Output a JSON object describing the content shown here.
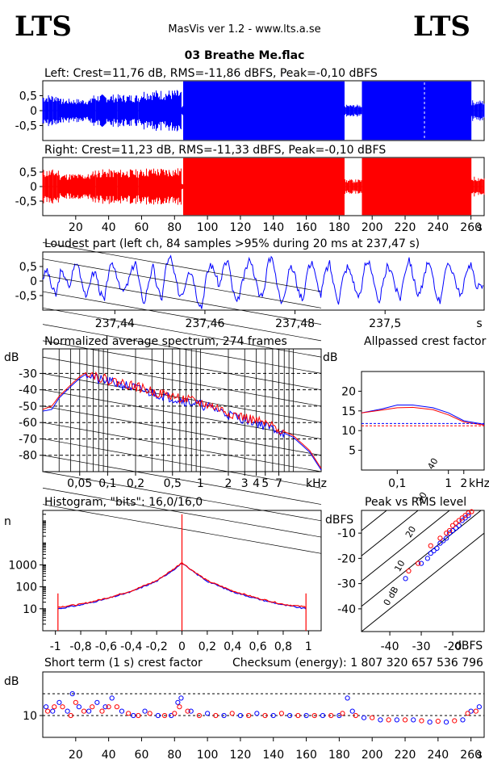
{
  "header": {
    "logo_left": "LTS",
    "logo_right": "LTS",
    "app_title": "MasVis ver 1.2 - www.lts.a.se",
    "track_title": "03 Breathe Me.flac"
  },
  "colors": {
    "left": "#0000ff",
    "right": "#ff0000",
    "frame": "#000000"
  },
  "chart_data": [
    {
      "id": "waveform-left",
      "type": "area",
      "title": "Left: Crest=11,76 dB, RMS=-11,86 dBFS, Peak=-0,10 dBFS",
      "ytick_labels": [
        "0,5",
        "0",
        "-0,5"
      ],
      "yticks": [
        0.5,
        0,
        -0.5
      ],
      "ylim": [
        -1,
        1
      ],
      "xlim": [
        0,
        268
      ],
      "series": [
        {
          "color": "#0000ff",
          "segments": [
            {
              "x0": 0,
              "x1": 10,
              "amp": 0.55
            },
            {
              "x0": 10,
              "x1": 30,
              "amp": 0.4
            },
            {
              "x0": 30,
              "x1": 60,
              "amp": 0.55
            },
            {
              "x0": 60,
              "x1": 84,
              "amp": 0.7
            },
            {
              "x0": 84,
              "x1": 85.5,
              "amp": 0.15
            },
            {
              "x0": 85.5,
              "x1": 183,
              "amp": 1.0
            },
            {
              "x0": 183,
              "x1": 194,
              "amp": 0.2
            },
            {
              "x0": 194,
              "x1": 260,
              "amp": 1.0
            },
            {
              "x0": 260,
              "x1": 268,
              "amp": 0.35
            }
          ]
        }
      ]
    },
    {
      "id": "waveform-right",
      "type": "area",
      "title": "Right: Crest=11,23 dB, RMS=-11,33 dBFS, Peak=-0,10 dBFS",
      "ytick_labels": [
        "0,5",
        "0",
        "-0,5"
      ],
      "yticks": [
        0.5,
        0,
        -0.5
      ],
      "ylim": [
        -1,
        1
      ],
      "xlim": [
        0,
        268
      ],
      "xtick_labels": [
        "20",
        "40",
        "60",
        "80",
        "100",
        "120",
        "140",
        "160",
        "180",
        "200",
        "220",
        "240",
        "260",
        "s"
      ],
      "xticks": [
        20,
        40,
        60,
        80,
        100,
        120,
        140,
        160,
        180,
        200,
        220,
        240,
        260
      ],
      "series": [
        {
          "color": "#ff0000",
          "segments": [
            {
              "x0": 0,
              "x1": 10,
              "amp": 0.6
            },
            {
              "x0": 10,
              "x1": 30,
              "amp": 0.45
            },
            {
              "x0": 30,
              "x1": 60,
              "amp": 0.6
            },
            {
              "x0": 60,
              "x1": 84,
              "amp": 0.65
            },
            {
              "x0": 84,
              "x1": 85.5,
              "amp": 0.15
            },
            {
              "x0": 85.5,
              "x1": 183,
              "amp": 1.0
            },
            {
              "x0": 183,
              "x1": 194,
              "amp": 0.25
            },
            {
              "x0": 194,
              "x1": 260,
              "amp": 1.0
            },
            {
              "x0": 260,
              "x1": 268,
              "amp": 0.35
            }
          ]
        }
      ]
    },
    {
      "id": "loudest-part",
      "type": "line",
      "title": "Loudest part (left  ch, 84 samples >95% during 20 ms at 237,47 s)",
      "ytick_labels": [
        "0,5",
        "0",
        "-0,5"
      ],
      "yticks": [
        0.5,
        0,
        -0.5
      ],
      "ylim": [
        -1,
        1
      ],
      "xlim": [
        237.424,
        237.522
      ],
      "xtick_labels": [
        "237,44",
        "237,46",
        "237,48",
        "237,5",
        "s"
      ],
      "xticks": [
        237.44,
        237.46,
        237.48,
        237.5
      ],
      "series": [
        {
          "color": "#0000ff",
          "y": [
            0.1,
            0.4,
            -0.2,
            -0.5,
            0.3,
            0.2,
            -0.3,
            0.5,
            0.6,
            -0.1,
            -0.6,
            0.2,
            0.3,
            -0.4,
            -0.7,
            0.4,
            0.55,
            0.1,
            -0.4,
            -0.2,
            0.3,
            0.7,
            -0.2,
            -0.8,
            0.0,
            0.5,
            -0.3,
            -0.6,
            0.6,
            0.8,
            0.1,
            -0.5,
            -0.3,
            0.4,
            0.2,
            -0.6,
            -0.9,
            0.1,
            0.6,
            0.3,
            -0.2,
            0.5,
            0.7,
            -0.3,
            -0.8,
            -0.2,
            0.4,
            0.8,
            0.2,
            -0.5,
            -0.4,
            0.6,
            0.9,
            -0.1,
            -0.7,
            -0.3,
            0.5,
            0.3,
            -0.4,
            -0.6,
            0.4,
            0.7,
            0.0,
            -0.5,
            0.3,
            0.6,
            -0.2,
            -0.7,
            0.1,
            0.5,
            0.2,
            -0.4,
            -0.5,
            0.6,
            0.7,
            -0.1,
            -0.8,
            -0.2,
            0.5,
            0.4,
            -0.3,
            -0.6,
            0.3,
            0.8,
            0.1,
            -0.5,
            -0.2,
            0.6,
            0.4,
            -0.4,
            -0.7,
            0.2,
            0.6,
            0.3,
            -0.3,
            -0.5,
            0.4,
            0.6,
            -0.1,
            -0.2
          ]
        }
      ]
    },
    {
      "id": "average-spectrum",
      "type": "line",
      "title": "Normalized average spectrum, 274 frames",
      "ylabel": "dB",
      "ytick_labels": [
        "-30",
        "-40",
        "-50",
        "-60",
        "-70",
        "-80"
      ],
      "yticks": [
        -30,
        -40,
        -50,
        -60,
        -70,
        -80
      ],
      "ylim": [
        -90,
        -15
      ],
      "xlim": [
        0.02,
        20
      ],
      "xscale": "log",
      "xtick_labels": [
        "0,05",
        "0,1",
        "0,2",
        "0,5",
        "1",
        "2",
        "3",
        "4",
        "5",
        "7",
        "kHz"
      ],
      "xticks": [
        0.05,
        0.1,
        0.2,
        0.5,
        1,
        2,
        3,
        4,
        5,
        7
      ],
      "series": [
        {
          "color": "#0000ff",
          "x": [
            0.02,
            0.025,
            0.03,
            0.04,
            0.05,
            0.06,
            0.08,
            0.1,
            0.15,
            0.2,
            0.3,
            0.5,
            0.7,
            1,
            1.5,
            2,
            3,
            4,
            5,
            7,
            10,
            15,
            20
          ],
          "y": [
            -53,
            -52,
            -45,
            -38,
            -33,
            -30,
            -34,
            -35,
            -37,
            -39,
            -42,
            -45,
            -47,
            -49,
            -52,
            -55,
            -58,
            -60,
            -62,
            -65,
            -69,
            -78,
            -89
          ]
        },
        {
          "color": "#ff0000",
          "x": [
            0.02,
            0.025,
            0.03,
            0.04,
            0.05,
            0.06,
            0.08,
            0.1,
            0.15,
            0.2,
            0.3,
            0.5,
            0.7,
            1,
            1.5,
            2,
            3,
            4,
            5,
            7,
            10,
            15,
            20
          ],
          "y": [
            -52,
            -50,
            -44,
            -37,
            -32,
            -29,
            -32,
            -34,
            -36,
            -38,
            -41,
            -44,
            -46,
            -48,
            -51,
            -54,
            -57,
            -59,
            -61,
            -64,
            -68,
            -77,
            -88
          ]
        }
      ]
    },
    {
      "id": "allpassed-crest",
      "type": "line",
      "title": "Allpassed crest factor",
      "ylabel": "dB",
      "ytick_labels": [
        "20",
        "15",
        "10",
        "5"
      ],
      "yticks": [
        20,
        15,
        10,
        5
      ],
      "ylim": [
        0,
        25
      ],
      "xlim": [
        0.02,
        5
      ],
      "xscale": "log",
      "xtick_labels": [
        "0,1",
        "1",
        "2",
        "kHz"
      ],
      "xticks": [
        0.1,
        1,
        2
      ],
      "series": [
        {
          "color": "#0000ff",
          "x": [
            0.02,
            0.05,
            0.1,
            0.2,
            0.5,
            1,
            2,
            5
          ],
          "y": [
            14.5,
            15.5,
            16.5,
            16.5,
            15.8,
            14.5,
            12.5,
            11.6
          ]
        },
        {
          "color": "#ff0000",
          "x": [
            0.02,
            0.05,
            0.1,
            0.2,
            0.5,
            1,
            2,
            5
          ],
          "y": [
            14.5,
            15.2,
            15.8,
            15.9,
            15.3,
            14,
            12.2,
            11.4
          ]
        },
        {
          "color": "#0000ff",
          "style": "dashed",
          "x": [
            0.02,
            5
          ],
          "y": [
            11.8,
            11.8
          ]
        },
        {
          "color": "#ff0000",
          "style": "dashed",
          "x": [
            0.02,
            5
          ],
          "y": [
            11.2,
            11.2
          ]
        }
      ]
    },
    {
      "id": "histogram",
      "type": "line",
      "title": "Histogram, \"bits\": 16,0/16,0",
      "ylabel": "n",
      "ytick_labels": [
        "1000",
        "100",
        "10"
      ],
      "yticks": [
        1000,
        100,
        10
      ],
      "yscale": "log",
      "ylim": [
        1,
        300000
      ],
      "xlim": [
        -1.1,
        1.1
      ],
      "xtick_labels": [
        "-1",
        "-0,8",
        "-0,6",
        "-0,4",
        "-0,2",
        "0",
        "0,2",
        "0,4",
        "0,6",
        "0,8",
        "1"
      ],
      "xticks": [
        -1,
        -0.8,
        -0.6,
        -0.4,
        -0.2,
        0,
        0.2,
        0.4,
        0.6,
        0.8,
        1
      ],
      "series": [
        {
          "color": "#0000ff",
          "x": [
            -0.98,
            -0.8,
            -0.6,
            -0.4,
            -0.2,
            -0.05,
            0,
            0.05,
            0.2,
            0.4,
            0.6,
            0.8,
            0.98
          ],
          "y": [
            10,
            15,
            28,
            60,
            180,
            700,
            1200,
            700,
            180,
            60,
            28,
            15,
            10
          ]
        },
        {
          "color": "#ff0000",
          "x": [
            -0.98,
            -0.8,
            -0.6,
            -0.4,
            -0.2,
            -0.05,
            0,
            0.05,
            0.2,
            0.4,
            0.6,
            0.8,
            0.98
          ],
          "y": [
            12,
            16,
            30,
            65,
            190,
            750,
            1300,
            750,
            190,
            65,
            30,
            16,
            12
          ]
        }
      ],
      "spikes": [
        {
          "color": "#ff0000",
          "x": -0.98,
          "y": 50
        },
        {
          "color": "#ff0000",
          "x": 0,
          "y": 200000
        },
        {
          "color": "#ff0000",
          "x": 0.98,
          "y": 50
        }
      ]
    },
    {
      "id": "peak-vs-rms",
      "type": "scatter",
      "title": "Peak vs RMS level",
      "ylabel": "dBFS",
      "xlabel": "dBFS",
      "ytick_labels": [
        "-10",
        "-20",
        "-30",
        "-40"
      ],
      "yticks": [
        -10,
        -20,
        -30,
        -40
      ],
      "ylim": [
        -49,
        -1
      ],
      "xtick_labels": [
        "-40",
        "-30",
        "-20"
      ],
      "xticks": [
        -40,
        -30,
        -20
      ],
      "xlim": [
        -49,
        -10
      ],
      "diagonal_labels": [
        "40",
        "30",
        "20",
        "10",
        "0 dB"
      ],
      "diagonal_offsets": [
        40,
        30,
        20,
        10,
        0
      ],
      "series": [
        {
          "color": "#0000ff",
          "x": [
            -35,
            -30,
            -28,
            -27,
            -26,
            -25,
            -24,
            -23,
            -22,
            -21,
            -20,
            -19,
            -18,
            -17,
            -16,
            -15
          ],
          "y": [
            -28,
            -22,
            -20,
            -18,
            -17,
            -16,
            -14,
            -13,
            -12,
            -10,
            -9,
            -8,
            -7,
            -5,
            -4,
            -3
          ]
        },
        {
          "color": "#ff0000",
          "x": [
            -34,
            -31,
            -27,
            -24,
            -22,
            -21,
            -20,
            -19,
            -18,
            -17,
            -16,
            -15,
            -14
          ],
          "y": [
            -25,
            -22,
            -15,
            -12,
            -10,
            -9,
            -7,
            -6,
            -5,
            -4,
            -3,
            -2,
            -1.5
          ]
        }
      ]
    },
    {
      "id": "short-term-crest",
      "type": "scatter",
      "title": "Short term (1 s) crest factor",
      "checksum": "Checksum (energy):  1 807 320 657 536 796",
      "ylabel": "dB",
      "ytick_labels": [
        "10"
      ],
      "yticks": [
        10
      ],
      "ylim": [
        5,
        20
      ],
      "xlim": [
        0,
        268
      ],
      "xtick_labels": [
        "20",
        "40",
        "60",
        "80",
        "100",
        "120",
        "140",
        "160",
        "180",
        "200",
        "220",
        "240",
        "260",
        "s"
      ],
      "xticks": [
        20,
        40,
        60,
        80,
        100,
        120,
        140,
        160,
        180,
        200,
        220,
        240,
        260
      ],
      "series": [
        {
          "color": "#0000ff",
          "x": [
            2,
            6,
            10,
            15,
            18,
            22,
            28,
            33,
            38,
            42,
            48,
            55,
            62,
            70,
            78,
            82,
            84,
            90,
            100,
            110,
            120,
            130,
            140,
            150,
            160,
            170,
            180,
            185,
            188,
            195,
            205,
            215,
            225,
            235,
            245,
            255,
            260,
            265
          ],
          "y": [
            12,
            11,
            13,
            11,
            15,
            12,
            11,
            13,
            12,
            14,
            11,
            10,
            11,
            10,
            10,
            13,
            14,
            11,
            10.5,
            10,
            10,
            10.5,
            10,
            10,
            10,
            10,
            10,
            14,
            11,
            9.5,
            9,
            9,
            9,
            8.5,
            8.5,
            9,
            11,
            12
          ]
        },
        {
          "color": "#ff0000",
          "x": [
            3,
            7,
            12,
            17,
            20,
            25,
            30,
            36,
            40,
            45,
            52,
            58,
            65,
            74,
            80,
            83,
            88,
            95,
            105,
            115,
            125,
            135,
            145,
            155,
            165,
            175,
            182,
            190,
            200,
            210,
            220,
            230,
            240,
            250,
            258,
            263
          ],
          "y": [
            11,
            12,
            12,
            10,
            13,
            11,
            12,
            11,
            12,
            12,
            10.5,
            10,
            10.5,
            10,
            10.5,
            12,
            11,
            10,
            10,
            10.5,
            10,
            10,
            10.5,
            10,
            10,
            10,
            10.5,
            10,
            9.5,
            9,
            9,
            8.8,
            8.7,
            8.8,
            10.5,
            11
          ]
        }
      ],
      "ref_lines": [
        15,
        10
      ]
    }
  ]
}
